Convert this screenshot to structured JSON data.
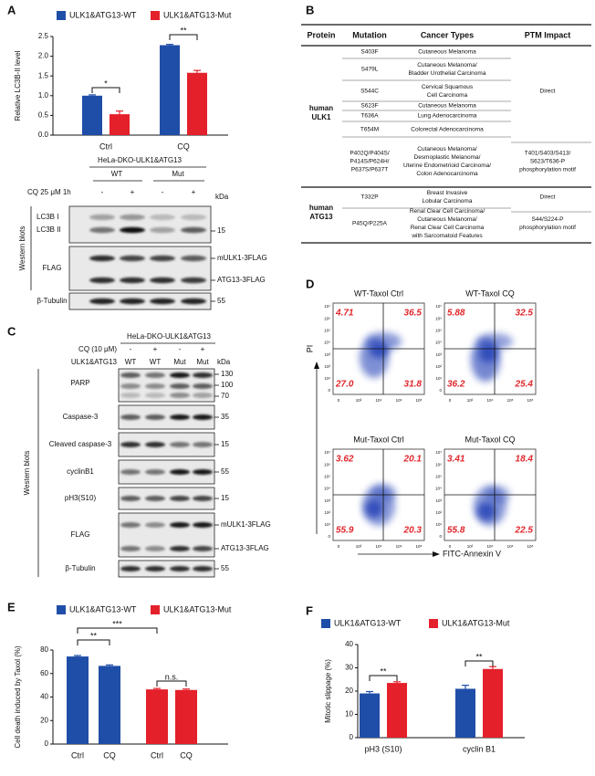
{
  "panel_labels": [
    "A",
    "B",
    "C",
    "D",
    "E",
    "F"
  ],
  "chart_data": [
    {
      "type": "bar",
      "ylabel": "Relative LC3B-II level",
      "categories": [
        "Ctrl",
        "CQ"
      ],
      "series": [
        {
          "name": "ULK1&ATG13-WT",
          "color": "#1f4ea8",
          "values": [
            1.0,
            2.28
          ],
          "errors": [
            0.02,
            0.02
          ]
        },
        {
          "name": "ULK1&ATG13-Mut",
          "color": "#e4202b",
          "values": [
            0.53,
            1.58
          ],
          "errors": [
            0.08,
            0.06
          ]
        }
      ],
      "ylim": [
        0,
        2.5
      ],
      "yticks": [
        {
          "value": 0,
          "label": "0.0"
        },
        0.5,
        {
          "value": 1,
          "label": "1.0"
        },
        1.5,
        {
          "value": 2,
          "label": "2.0"
        },
        2.5
      ],
      "annotations": [
        "*",
        "**"
      ]
    },
    {
      "type": "bar",
      "ylabel": "Cell death induced by Taxol (%)",
      "categories": [
        "Ctrl",
        "CQ",
        "Ctrl",
        "CQ"
      ],
      "series": [
        {
          "name": "ULK1&ATG13-WT",
          "color": "#1f4ea8",
          "values": [
            74.5,
            66.5,
            null,
            null
          ],
          "errors": [
            0.8,
            0.8,
            null,
            null
          ]
        },
        {
          "name": "ULK1&ATG13-Mut",
          "color": "#e4202b",
          "values": [
            null,
            null,
            46.5,
            46
          ],
          "errors": [
            null,
            null,
            0.8,
            0.8
          ]
        }
      ],
      "ylim": [
        0,
        80
      ],
      "yticks": [
        0,
        20,
        40,
        60,
        80
      ],
      "annotations": [
        "**",
        "***",
        "n.s."
      ]
    },
    {
      "type": "bar",
      "ylabel": "Mitotic slippage (%)",
      "categories": [
        "pH3 (S10)",
        "cyclin B1"
      ],
      "series": [
        {
          "name": "ULK1&ATG13-WT",
          "color": "#1f4ea8",
          "values": [
            19,
            21
          ],
          "errors": [
            0.8,
            1.5
          ]
        },
        {
          "name": "ULK1&ATG13-Mut",
          "color": "#e4202b",
          "values": [
            23.5,
            29.5
          ],
          "errors": [
            0.5,
            1.0
          ]
        }
      ],
      "ylim": [
        0,
        40
      ],
      "yticks": [
        0,
        10,
        20,
        30,
        40
      ],
      "annotations": [
        "**",
        "**"
      ]
    }
  ],
  "blot_a": {
    "title": "HeLa-DKO-ULK1&ATG13",
    "groups": [
      "WT",
      "Mut"
    ],
    "treatment_label": "CQ 25 μM 1h",
    "treatment": [
      "-",
      "+",
      "-",
      "+"
    ],
    "kda": "kDa",
    "side_label": "Western blots",
    "rows": [
      {
        "labels": [
          "LC3B I",
          "LC3B II"
        ],
        "markers": [
          "15"
        ]
      },
      {
        "labels": [
          "FLAG"
        ],
        "markers": [
          "mULK1-3FLAG",
          "ATG13-3FLAG"
        ]
      },
      {
        "labels": [
          "β-Tubulin"
        ],
        "markers": [
          "55"
        ]
      }
    ]
  },
  "blot_c": {
    "title": "HeLa-DKO-ULK1&ATG13",
    "treatment_label": "CQ (10 μM)",
    "treatment": [
      "-",
      "+",
      "-",
      "+"
    ],
    "genotype_label": "ULK1&ATG13",
    "genotypes": [
      "WT",
      "WT",
      "Mut",
      "Mut"
    ],
    "kda": "kDa",
    "side_label": "Western blots",
    "rows": [
      {
        "labels": [
          "PARP"
        ],
        "markers": [
          "130",
          "100",
          "70"
        ]
      },
      {
        "labels": [
          "Caspase-3"
        ],
        "markers": [
          "35"
        ]
      },
      {
        "labels": [
          "Cleaved caspase-3"
        ],
        "markers": [
          "15"
        ]
      },
      {
        "labels": [
          "cyclinB1"
        ],
        "markers": [
          "55"
        ]
      },
      {
        "labels": [
          "pH3(S10)"
        ],
        "markers": [
          "15"
        ]
      },
      {
        "labels": [
          "FLAG"
        ],
        "markers": [
          "mULK1-3FLAG",
          "ATG13-3FLAG"
        ]
      },
      {
        "labels": [
          "β-Tubulin"
        ],
        "markers": [
          "55"
        ]
      }
    ]
  },
  "table": {
    "headers": [
      "Protein",
      "Mutation",
      "Cancer Types",
      "PTM Impact"
    ],
    "groups": [
      {
        "protein": [
          "human",
          "ULK1"
        ],
        "rows": [
          {
            "mutation": [
              "S403F"
            ],
            "cancer": [
              "Cutaneous Melanoma"
            ]
          },
          {
            "mutation": [
              "S479L"
            ],
            "cancer": [
              "Cutaneous Melanoma/",
              "Bladder Urothelial Carcinoma"
            ]
          },
          {
            "mutation": [
              "S544C"
            ],
            "cancer": [
              "Cervical Squamous",
              "Cell Carcinoma"
            ]
          },
          {
            "mutation": [
              "S623F"
            ],
            "cancer": [
              "Cutaneous Melanoma"
            ]
          },
          {
            "mutation": [
              "T636A"
            ],
            "cancer": [
              "Lung Adenocarcinoma"
            ]
          },
          {
            "mutation": [
              "T654M"
            ],
            "cancer": [
              "Colorectal Adenocarcinoma"
            ]
          },
          {
            "mutation": [
              "P402Q/P404S/",
              "P414S/P624H/",
              "P637S/P637T"
            ],
            "cancer": [
              "Cutaneous Melanoma/",
              "Desmoplastic Melanoma/",
              "Uterine Endometrioid Carcinoma/",
              "Colon Adenocarcinoma"
            ]
          }
        ],
        "ptm": [
          [
            "Direct"
          ],
          [
            "T401/S403/S413/",
            "S623/T636-P",
            "phosphorylation motif"
          ]
        ]
      },
      {
        "protein": [
          "human",
          "ATG13"
        ],
        "rows": [
          {
            "mutation": [
              "T332P"
            ],
            "cancer": [
              "Breast Invasive",
              "Lobular Carcinoma"
            ]
          },
          {
            "mutation": [
              "P45Q/P225A"
            ],
            "cancer": [
              "Renal Clear Cell Carcinoma/",
              "Cutaneous Melanoma/",
              "Renal Clear Cell Carcinoma",
              "with Sarcomatoid Features"
            ]
          }
        ],
        "ptm": [
          [
            "Direct"
          ],
          [
            "S44/S224-P",
            "phosphorylation motif"
          ]
        ]
      }
    ]
  },
  "flow": {
    "y_label": "PI",
    "x_label": "FITC-Annexin V",
    "yticks": [
      "10⁷",
      "10⁶",
      "10⁵",
      "10⁴",
      "10³",
      "10²",
      "10¹",
      "0"
    ],
    "xticks": [
      "0",
      "10²",
      "10⁴",
      "10⁶",
      "10⁸"
    ],
    "plots": [
      {
        "title": "WT-Taxol Ctrl",
        "quadrants": [
          "4.71",
          "36.5",
          "27.0",
          "31.8"
        ]
      },
      {
        "title": "WT-Taxol CQ",
        "quadrants": [
          "5.88",
          "32.5",
          "36.2",
          "25.4"
        ]
      },
      {
        "title": "Mut-Taxol Ctrl",
        "quadrants": [
          "3.62",
          "20.1",
          "55.9",
          "20.3"
        ]
      },
      {
        "title": "Mut-Taxol CQ",
        "quadrants": [
          "3.41",
          "18.4",
          "55.8",
          "22.5"
        ]
      }
    ]
  }
}
